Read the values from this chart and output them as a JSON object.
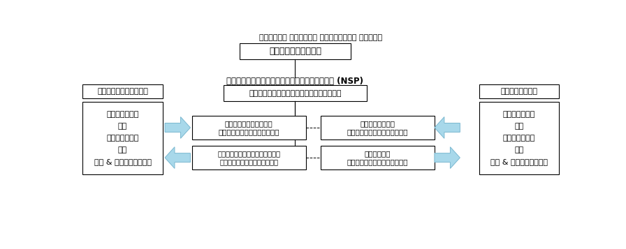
{
  "title": "ニュートレコ コーポレート サステナビリティ ガバナンス",
  "nsp_label": "ニュートレコサステナビリティプラットフォーム (NSP)",
  "board_box": "ニュートレコ取締役会",
  "director_box": "ニュートレコサステナビリティディレクター",
  "left_title_box": "トラウニュートリション",
  "right_title_box": "スクレッティング",
  "left_list": [
    "オペレーション",
    "購買",
    "イノベーション",
    "人事",
    "倫理 & コンプライアンス"
  ],
  "right_list": [
    "オペレーション",
    "購買",
    "イノベーション",
    "人事",
    "倫理 & コンプライアンス"
  ],
  "center_boxes": [
    "トラウニュートリション\nサステナビリティマネージャー",
    "スクレッティング\nサステナビリティマネージャー",
    "トラウニュートリションイベリア\nサステナビリティマネージャー",
    "ニュートレコ\nサステナビリティマネージャー"
  ],
  "bg_color": "#ffffff",
  "box_edge_color": "#000000",
  "box_face_color": "#ffffff",
  "arrow_color": "#a8d8ea",
  "arrow_edge_color": "#7ab8d0",
  "text_color": "#000000"
}
